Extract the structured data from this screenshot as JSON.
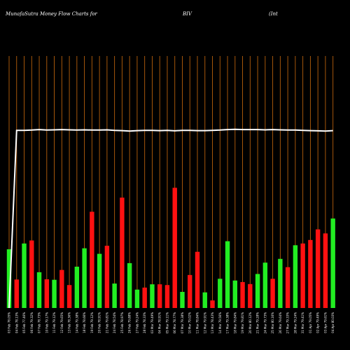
{
  "header": {
    "site": "MunafaSutra  Money Flow  Charts for",
    "symbol": "BIV",
    "company": "(Int"
  },
  "chart_data": {
    "type": "bar",
    "title": "MunafaSutra  Money Flow  Charts for BIV (Int",
    "ylim": [
      0,
      100
    ],
    "grid": "vertical",
    "colors": {
      "up": "#22ee22",
      "down": "#ff1111",
      "grid": "#b8600c",
      "line": "#ffffff",
      "background": "#000000"
    },
    "categories": [
      "1",
      "2",
      "3",
      "4",
      "5",
      "6",
      "7",
      "8",
      "9",
      "10",
      "11",
      "12",
      "13",
      "14",
      "15",
      "16",
      "17",
      "18",
      "19",
      "20",
      "21",
      "22",
      "23",
      "24",
      "25",
      "26",
      "27",
      "28",
      "29",
      "30",
      "31",
      "32",
      "33",
      "34",
      "35",
      "36",
      "37",
      "38",
      "39",
      "40",
      "41",
      "42",
      "43",
      "44"
    ],
    "tick_labels": [
      "03 Feb 78.05%",
      "04 Feb 78.13%",
      "05 Feb 77.46%",
      "06 Feb 79.32%",
      "07 Feb 78.73%",
      "10 Feb 79.17%",
      "11 Feb 79.12%",
      "12 Feb 79.65%",
      "13 Feb 78.36%",
      "14 Feb 79.38%",
      "18 Feb 78.66%",
      "19 Feb 79.12%",
      "20 Feb 78.91%",
      "21 Feb 79.81%",
      "24 Feb 78.54%",
      "25 Feb 78.97%",
      "26 Feb 79.88%",
      "27 Feb 79.24%",
      "28 Feb 78.33%",
      "03 Mar 79.49%",
      "04 Mar 78.91%",
      "05 Mar 79.11%",
      "06 Mar 78.77%",
      "07 Mar 79.38%",
      "10 Mar 79.02%",
      "11 Mar 78.84%",
      "12 Mar 79.91%",
      "13 Mar 78.43%",
      "14 Mar 79.56%",
      "17 Mar 79.38%",
      "18 Mar 79.84%",
      "19 Mar 79.81%",
      "20 Mar 80.12%",
      "21 Mar 79.28%",
      "24 Mar 79.73%",
      "25 Mar 80.16%",
      "26 Mar 79.64%",
      "27 Mar 79.33%",
      "28 Mar 79.24%",
      "31 Mar 79.41%",
      "01 Apr 79.05%",
      "02 Apr 79.49%",
      "03 Apr 79.61%",
      "04 Apr 80.03%"
    ],
    "series": [
      {
        "values": [
          23.3,
          11.3,
          25.6,
          26.8,
          14.2,
          11.4,
          11.2,
          15.1,
          9.1,
          16.4,
          23.7,
          38.2,
          21.5,
          24.7,
          9.7,
          43.8,
          17.8,
          7.3,
          8.1,
          9.4,
          9.4,
          9.1,
          47.7,
          6.4,
          13.1,
          22.3,
          6.2,
          3.0,
          11.6,
          26.5,
          10.9,
          10.3,
          9.5,
          13.5,
          18.0,
          11.6,
          19.5,
          16.2,
          24.9,
          25.6,
          27.0,
          31.2,
          29.6,
          35.5
        ],
        "direction": [
          "up",
          "down",
          "up",
          "down",
          "up",
          "down",
          "up",
          "down",
          "down",
          "up",
          "up",
          "down",
          "up",
          "down",
          "up",
          "down",
          "up",
          "up",
          "down",
          "up",
          "down",
          "down",
          "down",
          "up",
          "down",
          "down",
          "up",
          "down",
          "up",
          "up",
          "up",
          "down",
          "down",
          "up",
          "up",
          "down",
          "up",
          "down",
          "up",
          "down",
          "down",
          "down",
          "down",
          "up"
        ]
      },
      {
        "values": [
          0,
          70.5,
          70.5,
          70.6,
          70.8,
          70.6,
          70.7,
          70.8,
          70.7,
          70.6,
          70.7,
          70.6,
          70.6,
          70.7,
          70.5,
          70.4,
          70.2,
          70.4,
          70.5,
          70.5,
          70.4,
          70.5,
          70.3,
          70.5,
          70.5,
          70.4,
          70.4,
          70.5,
          70.6,
          70.8,
          70.9,
          70.8,
          70.8,
          70.8,
          70.7,
          70.8,
          70.7,
          70.6,
          70.6,
          70.5,
          70.4,
          70.3,
          70.2,
          70.4
        ]
      }
    ]
  }
}
